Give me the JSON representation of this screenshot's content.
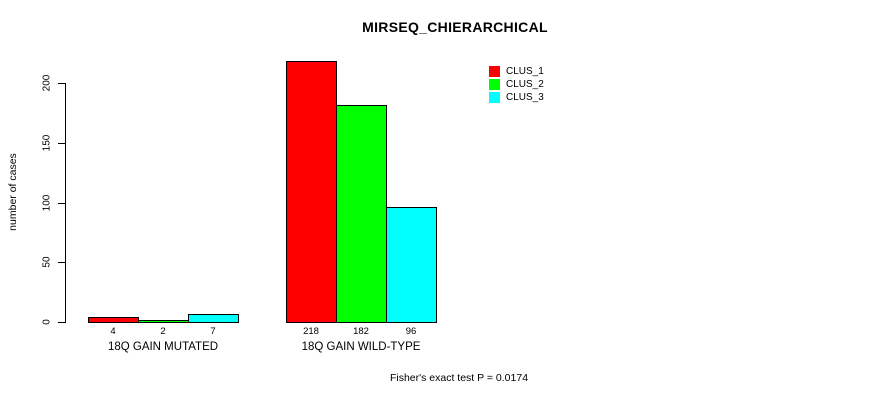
{
  "chart_data": {
    "type": "bar",
    "title": "MIRSEQ_CHIERARCHICAL",
    "xlabel": "",
    "ylabel": "number of cases",
    "categories": [
      "18Q GAIN MUTATED",
      "18Q GAIN WILD-TYPE"
    ],
    "series": [
      {
        "name": "CLUS_1",
        "color": "#FF0000",
        "values": [
          4,
          218
        ]
      },
      {
        "name": "CLUS_2",
        "color": "#00FF00",
        "values": [
          2,
          182
        ]
      },
      {
        "name": "CLUS_3",
        "color": "#00FFFF",
        "values": [
          7,
          96
        ]
      }
    ],
    "y_ticks": [
      0,
      50,
      100,
      150,
      200
    ],
    "ylim": [
      0,
      218
    ],
    "grid": false,
    "bar_borders": "#000000",
    "background": "#FFFFFF",
    "legend_position": "top-right",
    "value_labels_under_bars": true,
    "annotation": "Fisher's exact test P = 0.0174"
  }
}
